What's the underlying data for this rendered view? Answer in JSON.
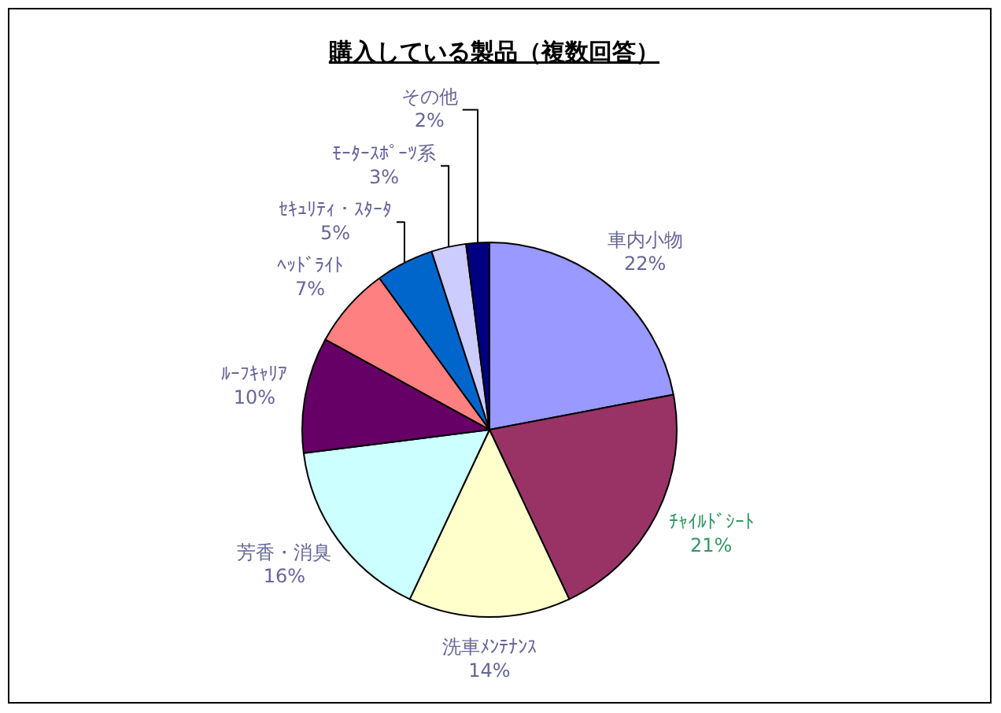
{
  "chart_data": {
    "type": "pie",
    "title": "購入している製品（複数回答）",
    "categories": [
      "車内小物",
      "ﾁｬｲﾙﾄﾞｼｰﾄ",
      "洗車ﾒﾝﾃﾅﾝｽ",
      "芳香・消臭",
      "ﾙｰﾌｷｬﾘｱ",
      "ﾍｯﾄﾞﾗｲﾄ",
      "ｾｷｭﾘﾃｨ・ｽﾀｰﾀ",
      "ﾓｰﾀｰｽﾎﾟｰﾂ系",
      "その他"
    ],
    "values": [
      22,
      21,
      14,
      16,
      10,
      7,
      5,
      3,
      2
    ],
    "value_labels": [
      "22%",
      "21%",
      "14%",
      "16%",
      "10%",
      "7%",
      "5%",
      "3%",
      "2%"
    ],
    "colors": [
      "#9999ff",
      "#993366",
      "#ffffcc",
      "#ccffff",
      "#660066",
      "#ff8080",
      "#0066cc",
      "#ccccff",
      "#000080"
    ]
  }
}
